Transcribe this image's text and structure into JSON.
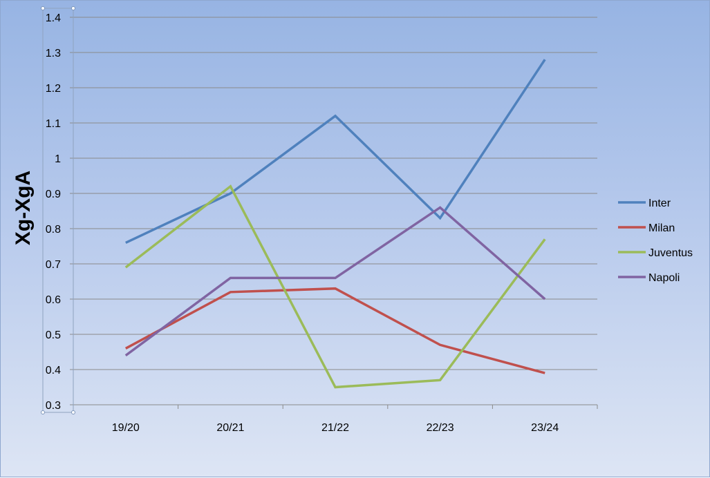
{
  "chart_data": {
    "type": "line",
    "title": "",
    "xlabel": "",
    "ylabel": "Xg-XgA",
    "categories": [
      "19/20",
      "20/21",
      "21/22",
      "22/23",
      "23/24"
    ],
    "ylim": [
      0.3,
      1.4
    ],
    "yticks": [
      "0.3",
      "0.4",
      "0.5",
      "0.6",
      "0.7",
      "0.8",
      "0.9",
      "1",
      "1.1",
      "1.2",
      "1.3",
      "1.4"
    ],
    "grid": true,
    "legend_position": "right",
    "series": [
      {
        "name": "Inter",
        "color": "#4f81bd",
        "values": [
          0.76,
          0.9,
          1.12,
          0.83,
          1.28
        ]
      },
      {
        "name": "Milan",
        "color": "#c0504d",
        "values": [
          0.46,
          0.62,
          0.63,
          0.47,
          0.39
        ]
      },
      {
        "name": "Juventus",
        "color": "#9bbb59",
        "values": [
          0.69,
          0.92,
          0.35,
          0.37,
          0.77
        ]
      },
      {
        "name": "Napoli",
        "color": "#8064a2",
        "values": [
          0.44,
          0.66,
          0.66,
          0.86,
          0.6
        ]
      }
    ]
  }
}
